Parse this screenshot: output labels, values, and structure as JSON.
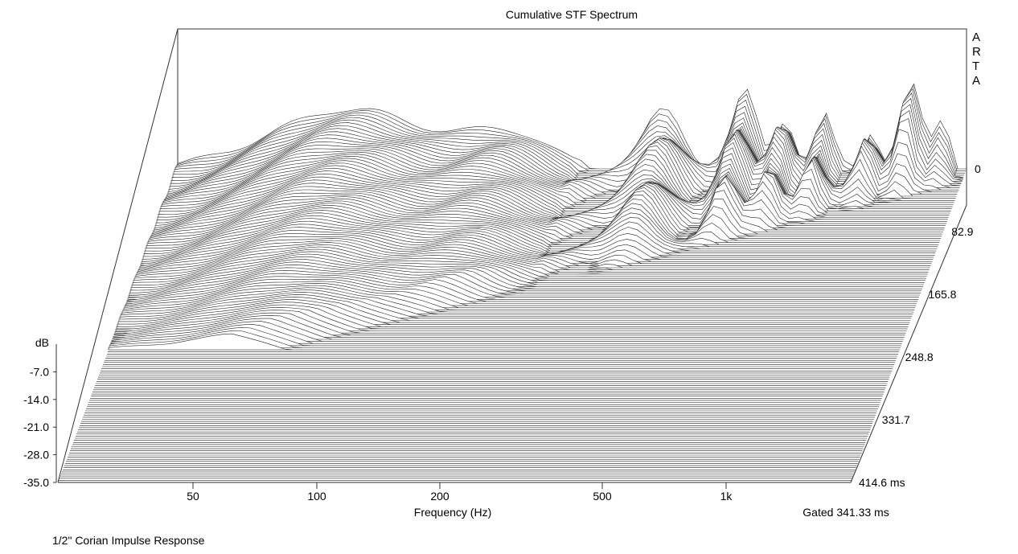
{
  "chart_data": {
    "type": "waterfall",
    "title": "Cumulative STF Spectrum",
    "watermark": "ARTA",
    "xlabel": "Frequency (Hz)",
    "x_scale": "log",
    "x_ticks": [
      "50",
      "100",
      "200",
      "500",
      "1k"
    ],
    "x_tick_values": [
      50,
      100,
      200,
      500,
      1000
    ],
    "xlim": [
      20,
      2000
    ],
    "zlabel": "dB",
    "z_ticks": [
      "-7.0",
      "-14.0",
      "-21.0",
      "-28.0",
      "-35.0"
    ],
    "zlim": [
      -35,
      0
    ],
    "time_axis_ticks": [
      "0",
      "82.9",
      "165.8",
      "248.8",
      "331.7",
      "414.6 ms"
    ],
    "time_axis_values_ms": [
      0,
      82.9,
      165.8,
      248.8,
      331.7,
      414.6
    ],
    "gated_label": "Gated 341.33 ms",
    "caption": "1/2\" Corian Impulse Response",
    "colors": {
      "line": "#222222",
      "frame": "#333333",
      "fill": "#ffffff"
    }
  }
}
